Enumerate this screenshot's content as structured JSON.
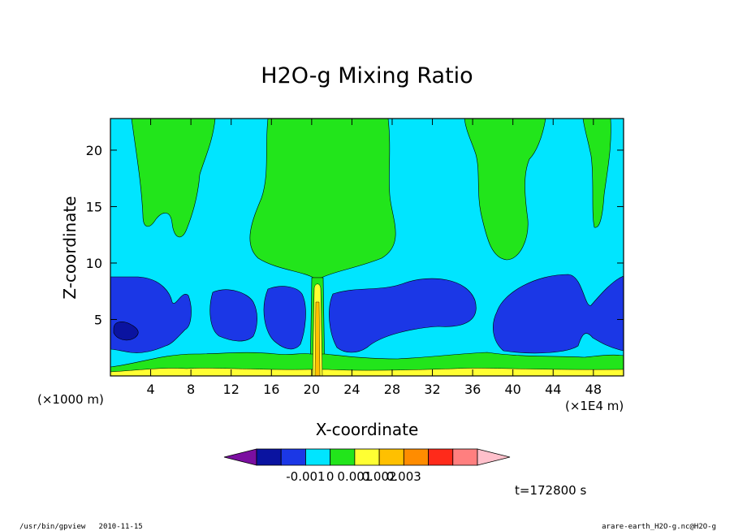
{
  "chart_data": {
    "type": "heatmap",
    "title": "H2O-g Mixing Ratio",
    "xlabel": "X-coordinate",
    "ylabel": "Z-coordinate",
    "x_scale_note": "(×1E4 m)",
    "y_scale_note": "(×1000 m)",
    "xlim": [
      0,
      51
    ],
    "ylim": [
      0,
      22.8
    ],
    "x_ticks": [
      4,
      8,
      12,
      16,
      20,
      24,
      28,
      32,
      36,
      40,
      44,
      48
    ],
    "y_ticks": [
      5,
      10,
      15,
      20
    ],
    "grid": false,
    "colorbar": {
      "placement": "bottom",
      "tick_labels": [
        "-0.001",
        "0",
        "0.001",
        "0.002",
        "0.003"
      ],
      "colors": [
        "#7b0fa0",
        "#0a13a0",
        "#1b37e6",
        "#00e5ff",
        "#22e51b",
        "#ffff33",
        "#ffc000",
        "#ff8c00",
        "#ff2a1a",
        "#ff7f7f",
        "#ffc0cb"
      ]
    },
    "annotation": "t=172800 s"
  },
  "colors": {
    "background": "#00e5ff",
    "green": "#22e51b",
    "blue": "#1b37e6",
    "darkblue": "#0a13a0",
    "yellow": "#ffff33",
    "orange": "#ffc000"
  },
  "footer": {
    "left": "/usr/bin/gpview   2010-11-15",
    "right": "arare-earth_H2O-g.nc@H2O-g"
  }
}
